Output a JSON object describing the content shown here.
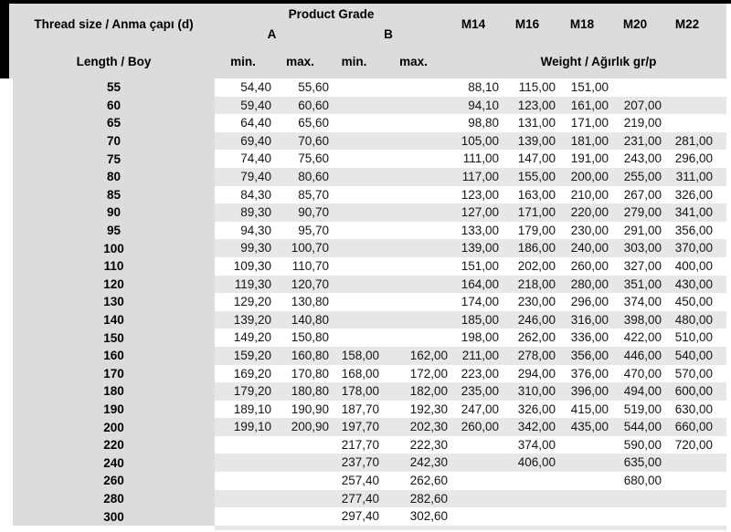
{
  "table": {
    "header": {
      "thread_size_label": "Thread size / Anma çapı (d)",
      "product_grade_label": "Product Grade",
      "grade_a_label": "A",
      "grade_b_label": "B",
      "size_labels": [
        "M14",
        "M16",
        "M18",
        "M20",
        "M22"
      ],
      "length_label": "Length / Boy",
      "a_min_label": "min.",
      "a_max_label": "max.",
      "b_min_label": "min.",
      "b_max_label": "max.",
      "weight_label": "Weight / Ağırlık gr/p"
    },
    "columns": [
      "length",
      "a_min",
      "a_max",
      "b_min",
      "b_max",
      "m14",
      "m16",
      "m18",
      "m20",
      "m22"
    ],
    "rows": [
      [
        "55",
        "54,40",
        "55,60",
        "",
        "",
        "88,10",
        "115,00",
        "151,00",
        "",
        ""
      ],
      [
        "60",
        "59,40",
        "60,60",
        "",
        "",
        "94,10",
        "123,00",
        "161,00",
        "207,00",
        ""
      ],
      [
        "65",
        "64,40",
        "65,60",
        "",
        "",
        "98,80",
        "131,00",
        "171,00",
        "219,00",
        ""
      ],
      [
        "70",
        "69,40",
        "70,60",
        "",
        "",
        "105,00",
        "139,00",
        "181,00",
        "231,00",
        "281,00"
      ],
      [
        "75",
        "74,40",
        "75,60",
        "",
        "",
        "111,00",
        "147,00",
        "191,00",
        "243,00",
        "296,00"
      ],
      [
        "80",
        "79,40",
        "80,60",
        "",
        "",
        "117,00",
        "155,00",
        "200,00",
        "255,00",
        "311,00"
      ],
      [
        "85",
        "84,30",
        "85,70",
        "",
        "",
        "123,00",
        "163,00",
        "210,00",
        "267,00",
        "326,00"
      ],
      [
        "90",
        "89,30",
        "90,70",
        "",
        "",
        "127,00",
        "171,00",
        "220,00",
        "279,00",
        "341,00"
      ],
      [
        "95",
        "94,30",
        "95,70",
        "",
        "",
        "133,00",
        "179,00",
        "230,00",
        "291,00",
        "356,00"
      ],
      [
        "100",
        "99,30",
        "100,70",
        "",
        "",
        "139,00",
        "186,00",
        "240,00",
        "303,00",
        "370,00"
      ],
      [
        "110",
        "109,30",
        "110,70",
        "",
        "",
        "151,00",
        "202,00",
        "260,00",
        "327,00",
        "400,00"
      ],
      [
        "120",
        "119,30",
        "120,70",
        "",
        "",
        "164,00",
        "218,00",
        "280,00",
        "351,00",
        "430,00"
      ],
      [
        "130",
        "129,20",
        "130,80",
        "",
        "",
        "174,00",
        "230,00",
        "296,00",
        "374,00",
        "450,00"
      ],
      [
        "140",
        "139,20",
        "140,80",
        "",
        "",
        "185,00",
        "246,00",
        "316,00",
        "398,00",
        "480,00"
      ],
      [
        "150",
        "149,20",
        "150,80",
        "",
        "",
        "198,00",
        "262,00",
        "336,00",
        "422,00",
        "510,00"
      ],
      [
        "160",
        "159,20",
        "160,80",
        "158,00",
        "162,00",
        "211,00",
        "278,00",
        "356,00",
        "446,00",
        "540,00"
      ],
      [
        "170",
        "169,20",
        "170,80",
        "168,00",
        "172,00",
        "223,00",
        "294,00",
        "376,00",
        "470,00",
        "570,00"
      ],
      [
        "180",
        "179,20",
        "180,80",
        "178,00",
        "182,00",
        "235,00",
        "310,00",
        "396,00",
        "494,00",
        "600,00"
      ],
      [
        "190",
        "189,10",
        "190,90",
        "187,70",
        "192,30",
        "247,00",
        "326,00",
        "415,00",
        "519,00",
        "630,00"
      ],
      [
        "200",
        "199,10",
        "200,90",
        "197,70",
        "202,30",
        "260,00",
        "342,00",
        "435,00",
        "544,00",
        "660,00"
      ],
      [
        "220",
        "",
        "",
        "217,70",
        "222,30",
        "",
        "374,00",
        "",
        "590,00",
        "720,00"
      ],
      [
        "240",
        "",
        "",
        "237,70",
        "242,30",
        "",
        "406,00",
        "",
        "635,00",
        ""
      ],
      [
        "260",
        "",
        "",
        "257,40",
        "262,60",
        "",
        "",
        "",
        "680,00",
        ""
      ],
      [
        "280",
        "",
        "",
        "277,40",
        "282,60",
        "",
        "",
        "",
        "",
        ""
      ],
      [
        "300",
        "",
        "",
        "297,40",
        "302,60",
        "",
        "",
        "",
        "",
        ""
      ]
    ]
  },
  "colors": {
    "header_bg": "#dcdcdc",
    "stripe_bg": "#e7e7e7",
    "border": "#000000"
  }
}
